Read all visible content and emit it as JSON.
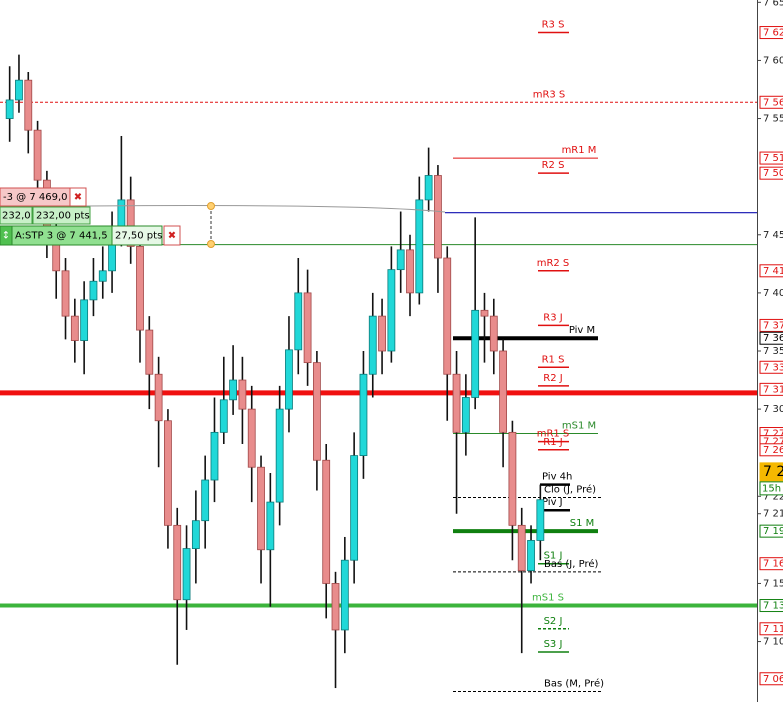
{
  "chart_data": {
    "type": "candlestick",
    "ylim": [
      7048,
      7652
    ],
    "yticks": [
      {
        "value": 7650,
        "label": "7 65"
      },
      {
        "value": 7600,
        "label": "7 60"
      },
      {
        "value": 7550,
        "label": "7 55"
      },
      {
        "value": 7450,
        "label": "7 45"
      },
      {
        "value": 7400,
        "label": "7 40"
      },
      {
        "value": 7350,
        "label": "7 35"
      },
      {
        "value": 7300,
        "label": "7 30"
      },
      {
        "value": 7225,
        "label": "7 22"
      },
      {
        "value": 7210,
        "label": "7 21"
      },
      {
        "value": 7150,
        "label": "7 15"
      },
      {
        "value": 7100,
        "label": "7 10"
      }
    ],
    "up_color": "#20d8d8",
    "down_color": "#e88c8c",
    "open": [
      7550,
      7566,
      7583,
      7540,
      7497,
      7450,
      7419,
      7380,
      7359,
      7394,
      7410,
      7419,
      7450,
      7480,
      7440,
      7368,
      7330,
      7290,
      7200,
      7136,
      7180,
      7204,
      7239,
      7280,
      7308,
      7325,
      7300,
      7250,
      7179,
      7220,
      7300,
      7351,
      7400,
      7340,
      7256,
      7150,
      7110,
      7170,
      7260,
      7330,
      7380,
      7350,
      7420,
      7437,
      7400,
      7480,
      7501,
      7430,
      7330,
      7280,
      7310,
      7385,
      7380,
      7350,
      7280,
      7200,
      7161,
      7187
    ],
    "high": [
      7595,
      7605,
      7590,
      7548,
      7505,
      7460,
      7430,
      7395,
      7410,
      7430,
      7440,
      7470,
      7535,
      7500,
      7455,
      7380,
      7345,
      7300,
      7215,
      7200,
      7230,
      7260,
      7310,
      7345,
      7355,
      7345,
      7320,
      7260,
      7245,
      7320,
      7380,
      7430,
      7420,
      7350,
      7270,
      7160,
      7190,
      7280,
      7350,
      7400,
      7395,
      7440,
      7470,
      7450,
      7500,
      7525,
      7510,
      7440,
      7350,
      7330,
      7465,
      7400,
      7395,
      7360,
      7290,
      7215,
      7200,
      7235
    ],
    "low": [
      7530,
      7555,
      7520,
      7480,
      7430,
      7395,
      7360,
      7340,
      7330,
      7380,
      7395,
      7400,
      7440,
      7425,
      7340,
      7300,
      7250,
      7180,
      7080,
      7110,
      7150,
      7180,
      7220,
      7270,
      7295,
      7270,
      7220,
      7150,
      7130,
      7200,
      7280,
      7330,
      7320,
      7230,
      7120,
      7060,
      7090,
      7150,
      7240,
      7310,
      7330,
      7340,
      7400,
      7380,
      7390,
      7470,
      7400,
      7290,
      7210,
      7260,
      7300,
      7340,
      7330,
      7250,
      7170,
      7090,
      7150,
      7170
    ],
    "close": [
      7566,
      7583,
      7540,
      7497,
      7450,
      7419,
      7380,
      7359,
      7394,
      7410,
      7419,
      7450,
      7480,
      7440,
      7368,
      7330,
      7290,
      7200,
      7136,
      7180,
      7204,
      7239,
      7280,
      7308,
      7325,
      7300,
      7250,
      7179,
      7220,
      7300,
      7351,
      7400,
      7340,
      7256,
      7150,
      7110,
      7170,
      7260,
      7330,
      7380,
      7350,
      7420,
      7437,
      7400,
      7480,
      7501,
      7430,
      7330,
      7280,
      7310,
      7385,
      7380,
      7350,
      7280,
      7200,
      7161,
      7187,
      7222
    ],
    "lines": [
      {
        "value": 7469,
        "color": "#1010b0",
        "style": "right"
      },
      {
        "value": 7441.5,
        "color": "#2a8a2a",
        "style": "thin-full"
      },
      {
        "value": 7314,
        "color": "#f01010",
        "style": "thick-full"
      }
    ],
    "levels": [
      {
        "name": "R3 S",
        "value": 7624,
        "color": "#e01010",
        "style": "short"
      },
      {
        "name": "mR3 S",
        "value": 7564,
        "color": "#e01010",
        "style": "dashed-full"
      },
      {
        "name": "mR1 M",
        "value": 7516,
        "color": "#e01010",
        "style": "medium"
      },
      {
        "name": "R2 S",
        "value": 7503,
        "color": "#e01010",
        "style": "short"
      },
      {
        "name": "mR2 S",
        "value": 7419,
        "color": "#e01010",
        "style": "short"
      },
      {
        "name": "R3 J",
        "value": 7372,
        "color": "#e01010",
        "style": "short"
      },
      {
        "name": "Piv M",
        "value": 7361,
        "color": "#000000",
        "style": "thick-medium"
      },
      {
        "name": "R1 S",
        "value": 7336,
        "color": "#e01010",
        "style": "short"
      },
      {
        "name": "R2 J",
        "value": 7320,
        "color": "#e01010",
        "style": "short"
      },
      {
        "name": "mS1 M",
        "value": 7279,
        "color": "#2a8a2a",
        "style": "medium"
      },
      {
        "name": "mR1 S",
        "value": 7272,
        "color": "#e01010",
        "style": "short"
      },
      {
        "name": "R1 J",
        "value": 7265,
        "color": "#e01010",
        "style": "short"
      },
      {
        "name": "Piv 4h",
        "value": 7235,
        "color": "#000000",
        "style": "short-thick"
      },
      {
        "name": "Clo (J, Pré)",
        "value": 7224,
        "color": "#000000",
        "style": "dashed"
      },
      {
        "name": "Piv J",
        "value": 7213,
        "color": "#000000",
        "style": "short-thick"
      },
      {
        "name": "S1 M",
        "value": 7195,
        "color": "#108010",
        "style": "thick-medium"
      },
      {
        "name": "S1 J",
        "value": 7167,
        "color": "#108010",
        "style": "short"
      },
      {
        "name": "Bas (J, Pré)",
        "value": 7160,
        "color": "#000000",
        "style": "dashed"
      },
      {
        "name": "mS1 S",
        "value": 7131,
        "color": "#3cb43c",
        "style": "thick-full"
      },
      {
        "name": "S2 J",
        "value": 7111,
        "color": "#108010",
        "style": "dashed-short"
      },
      {
        "name": "S3 J",
        "value": 7091,
        "color": "#108010",
        "style": "short"
      },
      {
        "name": "Bas (M, Pré)",
        "value": 7057,
        "color": "#000000",
        "style": "dashed"
      }
    ],
    "price_labels": [
      {
        "value": 7624,
        "label": "7 62",
        "color": "#e01010"
      },
      {
        "value": 7564,
        "label": "7 56",
        "color": "#e01010"
      },
      {
        "value": 7516,
        "label": "7 51",
        "color": "#e01010"
      },
      {
        "value": 7503,
        "label": "7 50",
        "color": "#e01010"
      },
      {
        "value": 7419,
        "label": "7 41",
        "color": "#e01010"
      },
      {
        "value": 7372,
        "label": "7 37",
        "color": "#e01010"
      },
      {
        "value": 7361,
        "label": "7 36",
        "color": "#000000"
      },
      {
        "value": 7336,
        "label": "7 33",
        "color": "#e01010"
      },
      {
        "value": 7317,
        "label": "7 31",
        "color": "#e01010"
      },
      {
        "value": 7279,
        "label": "7 27",
        "color": "#e01010"
      },
      {
        "value": 7272,
        "label": "7 27",
        "color": "#e01010"
      },
      {
        "value": 7265,
        "label": "7 26",
        "color": "#e01010"
      },
      {
        "value": 7246,
        "label": "7 2",
        "color": "#f5b800",
        "filled": true
      },
      {
        "value": 7195,
        "label": "7 19",
        "color": "#108010"
      },
      {
        "value": 7167,
        "label": "7 16",
        "color": "#e01010"
      },
      {
        "value": 7131,
        "label": "7 13",
        "color": "#108010"
      },
      {
        "value": 7111,
        "label": "7 11",
        "color": "#e01010"
      },
      {
        "value": 7068,
        "label": "7 06",
        "color": "#e01010"
      }
    ],
    "timer": "15h"
  },
  "orders": {
    "limit": "-3 @ 7 469,0",
    "points_a": "232,0",
    "points_b": "232,00 pts",
    "stop": "A:STP 3 @ 7 441,5",
    "stop_points": "27,50 pts"
  }
}
